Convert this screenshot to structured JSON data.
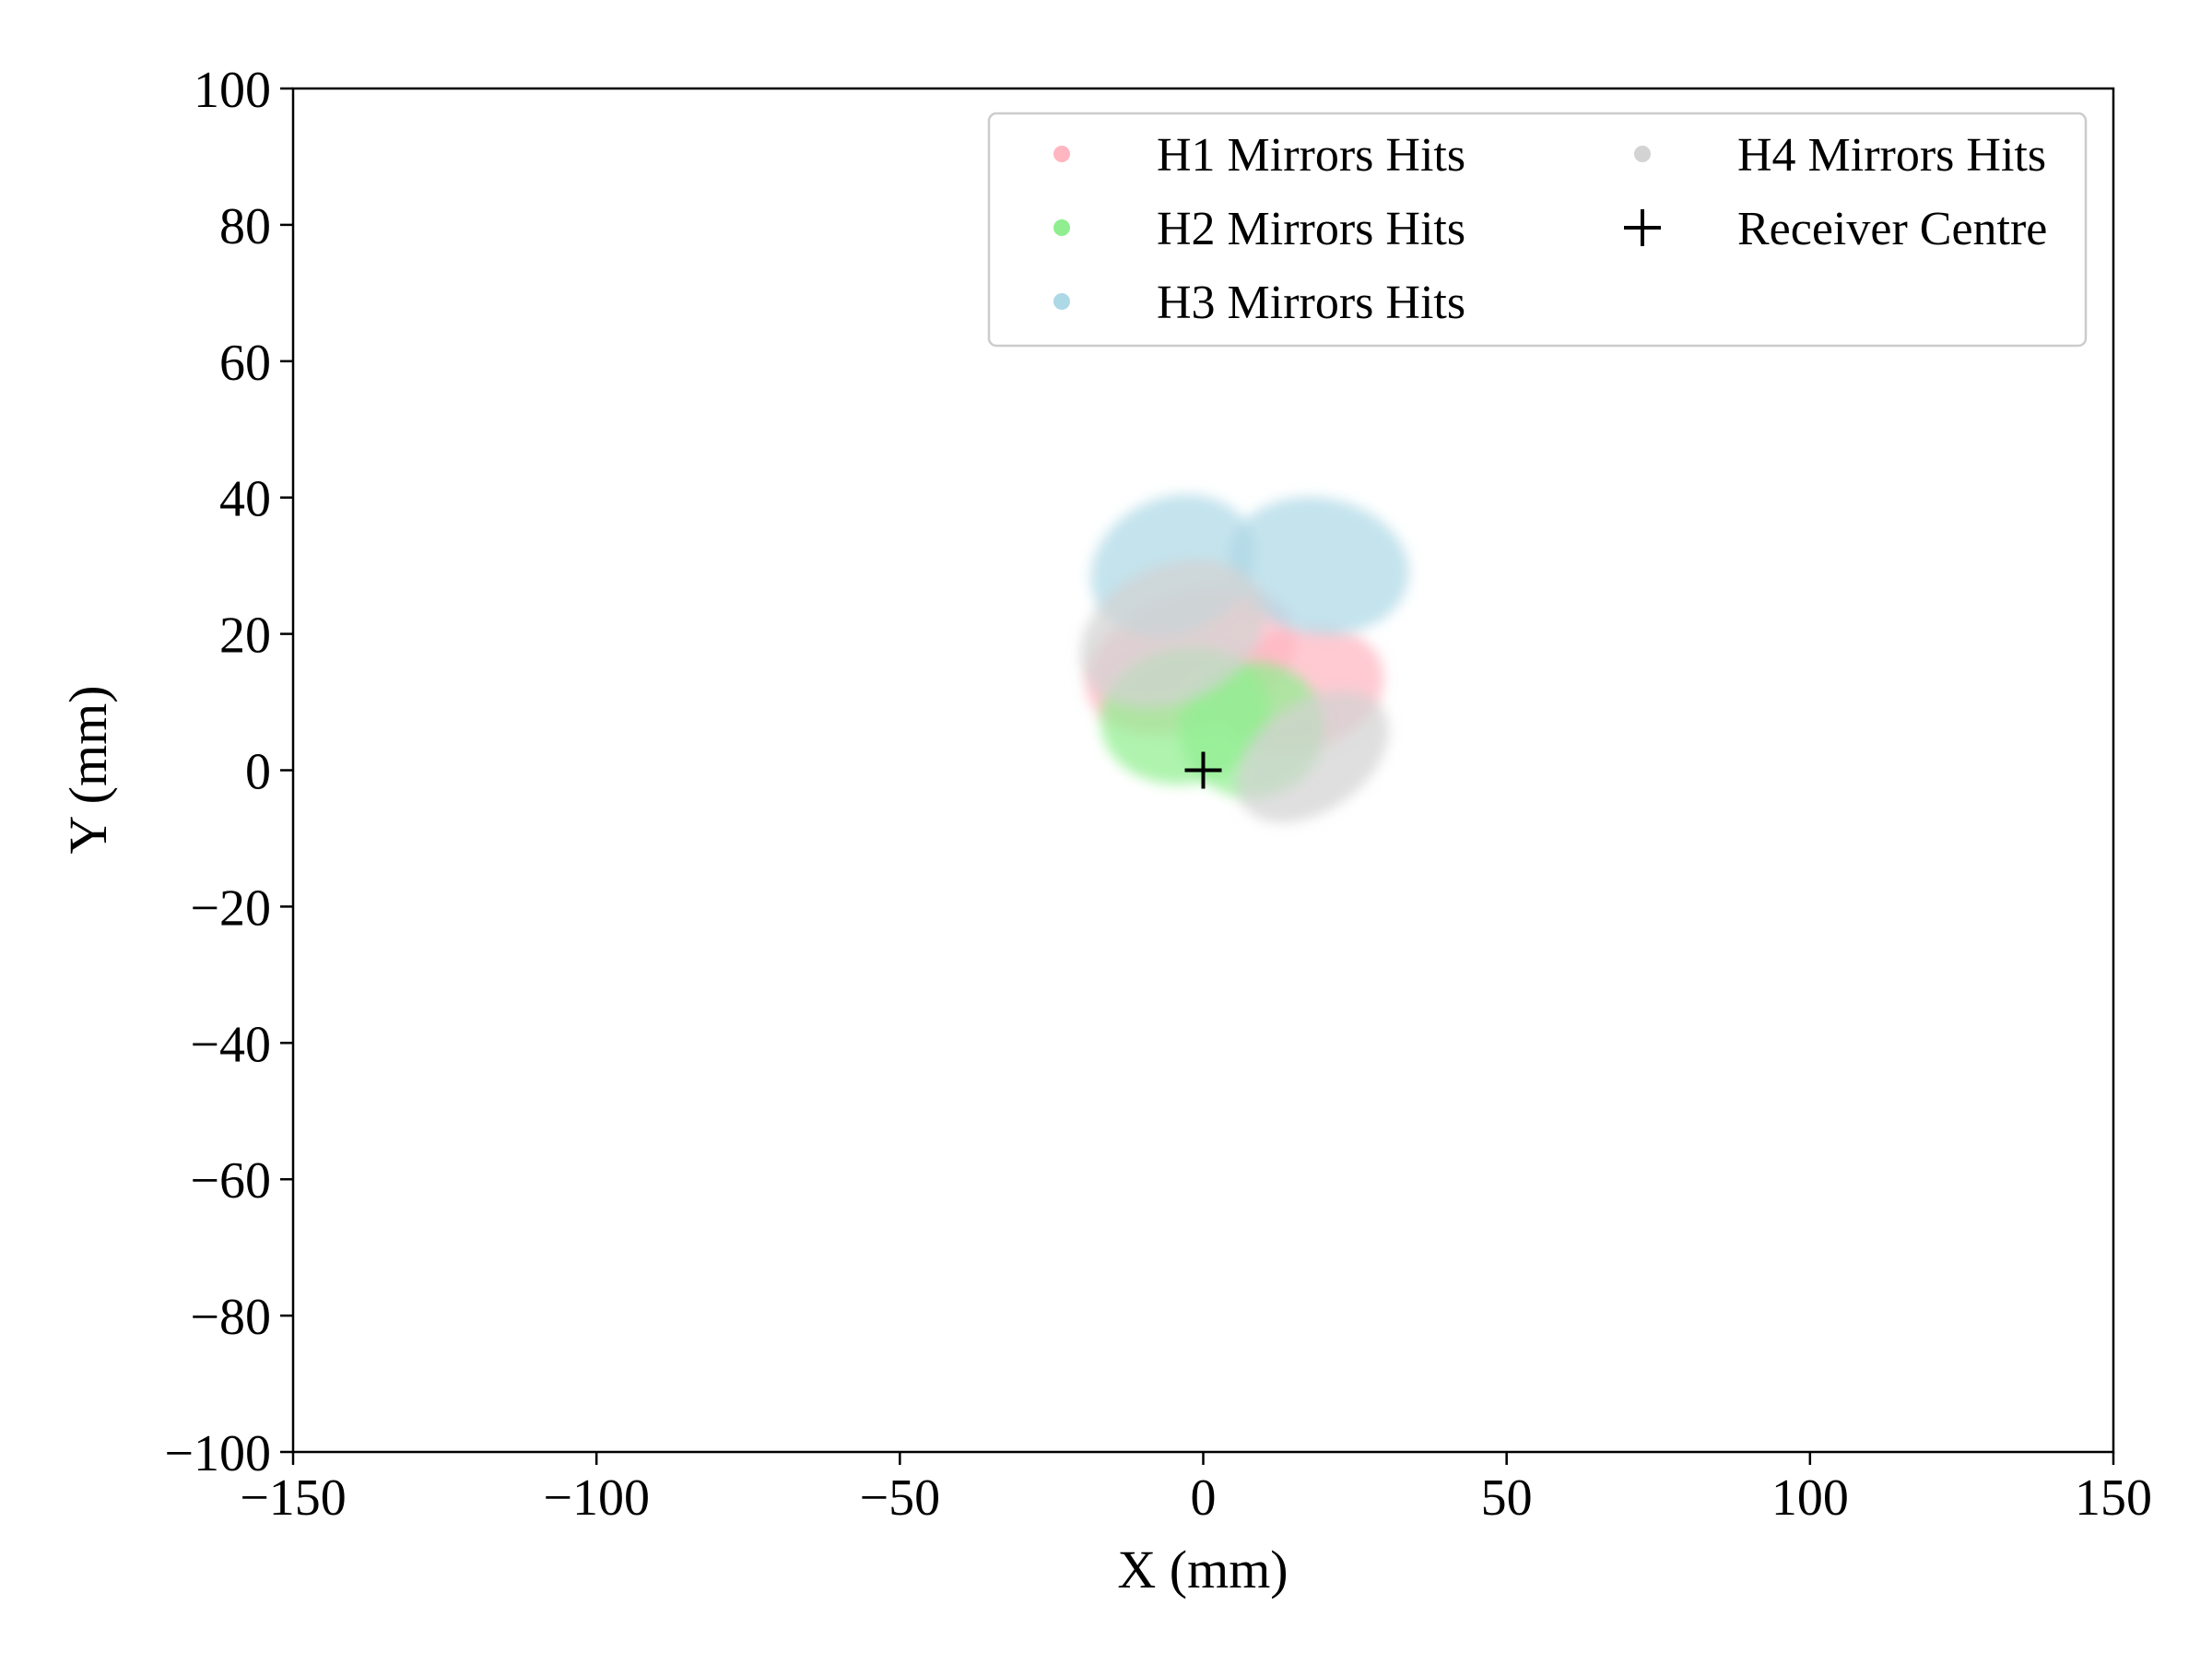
{
  "chart_data": {
    "type": "scatter",
    "title": "",
    "xlabel": "X (mm)",
    "ylabel": "Y (mm)",
    "xlim": [
      -150,
      150
    ],
    "ylim": [
      -100,
      100
    ],
    "x_ticks": [
      -150,
      -100,
      -50,
      0,
      50,
      100,
      150
    ],
    "y_ticks": [
      -100,
      -80,
      -60,
      -40,
      -20,
      0,
      20,
      40,
      60,
      80,
      100
    ],
    "x_tick_labels": [
      "−150",
      "−100",
      "−50",
      "0",
      "50",
      "100",
      "150"
    ],
    "y_tick_labels": [
      "−100",
      "−80",
      "−60",
      "−40",
      "−20",
      "0",
      "20",
      "40",
      "60",
      "80",
      "100"
    ],
    "grid": false,
    "legend_placement": "top-right",
    "legend_columns": 2,
    "series": [
      {
        "name": "H1 Mirrors Hits",
        "color": "#ffb6c1",
        "marker": "dot",
        "spots": [
          {
            "cx": -2,
            "cy": 16,
            "rx": 18,
            "ry": 10,
            "angle": -20
          },
          {
            "cx": 16,
            "cy": 12,
            "rx": 14,
            "ry": 9,
            "angle": -15
          }
        ]
      },
      {
        "name": "H2 Mirrors Hits",
        "color": "#90ee90",
        "marker": "dot",
        "spots": [
          {
            "cx": -3,
            "cy": 8,
            "rx": 14,
            "ry": 10,
            "angle": -10
          },
          {
            "cx": 8,
            "cy": 6,
            "rx": 12,
            "ry": 10,
            "angle": -5
          }
        ]
      },
      {
        "name": "H3 Mirrors Hits",
        "color": "#add8e6",
        "marker": "dot",
        "spots": [
          {
            "cx": -5,
            "cy": 30,
            "rx": 14,
            "ry": 10,
            "angle": -25
          },
          {
            "cx": 19,
            "cy": 30,
            "rx": 15,
            "ry": 10,
            "angle": 10
          }
        ]
      },
      {
        "name": "H4 Mirrors Hits",
        "color": "#d3d3d3",
        "marker": "dot",
        "spots": [
          {
            "cx": -5,
            "cy": 20,
            "rx": 16,
            "ry": 10,
            "angle": -25
          },
          {
            "cx": 18,
            "cy": 2,
            "rx": 14,
            "ry": 8,
            "angle": -35
          }
        ]
      }
    ],
    "markers": [
      {
        "name": "Receiver Centre",
        "x": 0,
        "y": 0,
        "marker": "plus",
        "color": "#000000"
      }
    ]
  }
}
